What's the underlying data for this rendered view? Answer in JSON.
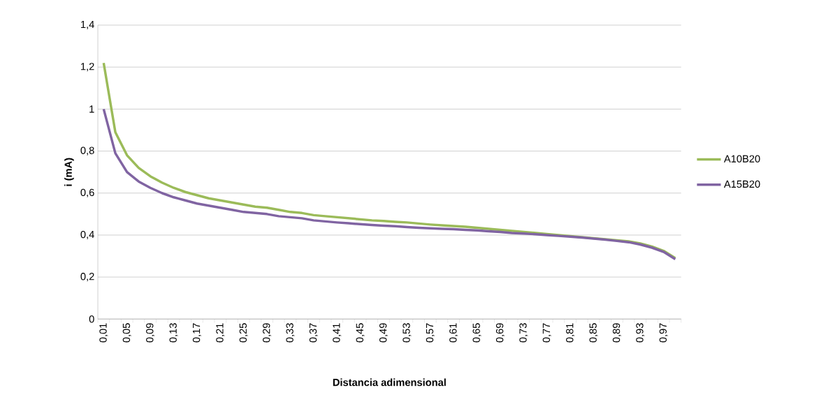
{
  "chart_data": {
    "type": "line",
    "xlabel": "Distancia adimensional",
    "ylabel": "i (mA)",
    "categories": [
      "0,01",
      null,
      "0,05",
      null,
      "0,09",
      null,
      "0,13",
      null,
      "0,17",
      null,
      "0,21",
      null,
      "0,25",
      null,
      "0,29",
      null,
      "0,33",
      null,
      "0,37",
      null,
      "0,41",
      null,
      "0,45",
      null,
      "0,49",
      null,
      "0,53",
      null,
      "0,57",
      null,
      "0,61",
      null,
      "0,65",
      null,
      "0,69",
      null,
      "0,73",
      null,
      "0,77",
      null,
      "0,81",
      null,
      "0,85",
      null,
      "0,89",
      null,
      "0,93",
      null,
      "0,97",
      null
    ],
    "series": [
      {
        "name": "A10B20",
        "color": "#9bbb59",
        "values": [
          1.22,
          0.89,
          0.78,
          0.72,
          0.68,
          0.65,
          0.625,
          0.605,
          0.59,
          0.575,
          0.565,
          0.555,
          0.545,
          0.535,
          0.53,
          0.52,
          0.51,
          0.505,
          0.495,
          0.49,
          0.485,
          0.48,
          0.475,
          0.47,
          0.467,
          0.463,
          0.46,
          0.455,
          0.45,
          0.446,
          0.443,
          0.44,
          0.435,
          0.43,
          0.425,
          0.42,
          0.415,
          0.41,
          0.405,
          0.4,
          0.395,
          0.39,
          0.385,
          0.38,
          0.375,
          0.37,
          0.36,
          0.345,
          0.325,
          0.29
        ]
      },
      {
        "name": "A15B20",
        "color": "#8064a2",
        "values": [
          1.0,
          0.79,
          0.7,
          0.655,
          0.625,
          0.6,
          0.58,
          0.565,
          0.55,
          0.54,
          0.53,
          0.52,
          0.51,
          0.505,
          0.5,
          0.49,
          0.485,
          0.48,
          0.47,
          0.465,
          0.46,
          0.456,
          0.452,
          0.448,
          0.445,
          0.442,
          0.438,
          0.435,
          0.432,
          0.43,
          0.428,
          0.425,
          0.422,
          0.418,
          0.415,
          0.41,
          0.407,
          0.404,
          0.4,
          0.396,
          0.392,
          0.388,
          0.383,
          0.378,
          0.372,
          0.366,
          0.355,
          0.34,
          0.32,
          0.285
        ]
      }
    ],
    "ylim": [
      0,
      1.4
    ],
    "yticks": [
      {
        "value": 0,
        "label": "0"
      },
      {
        "value": 0.2,
        "label": "0,2"
      },
      {
        "value": 0.4,
        "label": "0,4"
      },
      {
        "value": 0.6,
        "label": "0,6"
      },
      {
        "value": 0.8,
        "label": "0,8"
      },
      {
        "value": 1,
        "label": "1"
      },
      {
        "value": 1.2,
        "label": "1,2"
      },
      {
        "value": 1.4,
        "label": "1,4"
      }
    ],
    "grid": "y",
    "legend": "right",
    "line_style": "solid"
  }
}
